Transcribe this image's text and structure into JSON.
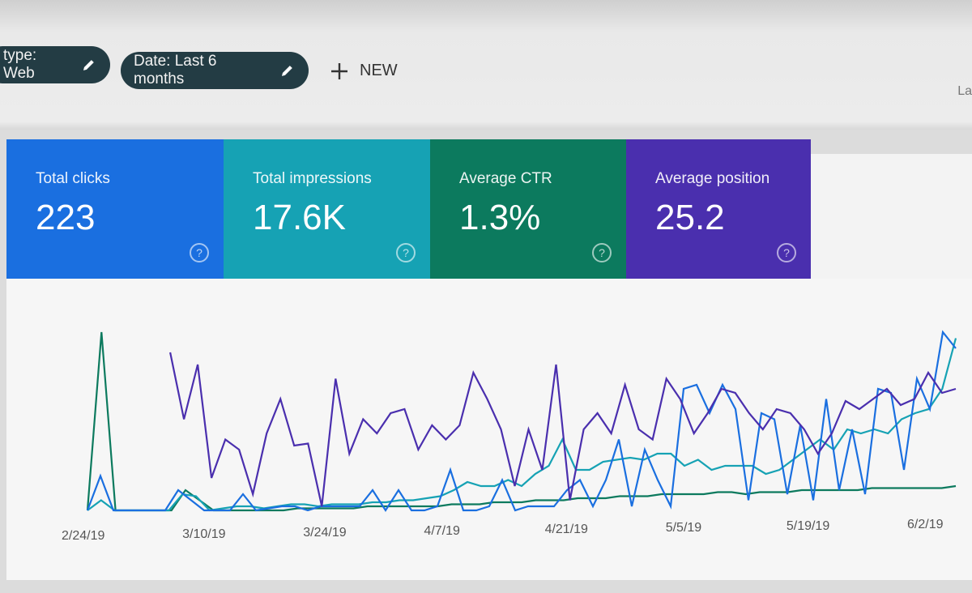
{
  "filters": [
    {
      "label": "type: Web",
      "icon": "pencil-icon"
    },
    {
      "label": "Date: Last 6 months",
      "icon": "pencil-icon"
    }
  ],
  "new_button": {
    "label": "NEW",
    "icon": "plus-icon"
  },
  "corner_text": "La",
  "metrics": [
    {
      "label": "Total clicks",
      "value": "223",
      "color": "#1a6fe0"
    },
    {
      "label": "Total impressions",
      "value": "17.6K",
      "color": "#16a2b4"
    },
    {
      "label": "Average CTR",
      "value": "1.3%",
      "color": "#0c7a5e"
    },
    {
      "label": "Average position",
      "value": "25.2",
      "color": "#4a2fae"
    }
  ],
  "help_glyph": "?",
  "chart_data": {
    "type": "line",
    "x_ticks": [
      "2/24/19",
      "3/10/19",
      "3/24/19",
      "4/7/19",
      "4/21/19",
      "5/5/19",
      "5/19/19",
      "6/2/19"
    ],
    "grid": false,
    "series": [
      {
        "color": "#4a2fae",
        "values": [
          null,
          null,
          null,
          null,
          null,
          null,
          78,
          45,
          72,
          16,
          35,
          30,
          8,
          38,
          55,
          32,
          33,
          2,
          65,
          28,
          45,
          38,
          48,
          50,
          30,
          42,
          35,
          42,
          68,
          55,
          40,
          12,
          40,
          20,
          72,
          5,
          40,
          48,
          38,
          62,
          40,
          35,
          65,
          55,
          38,
          48,
          60,
          58,
          48,
          40,
          50,
          48,
          40,
          28,
          38,
          54,
          50,
          55,
          60,
          52,
          55,
          68,
          58,
          60
        ]
      },
      {
        "color": "#1a6fe0",
        "values": [
          0,
          17,
          0,
          0,
          0,
          0,
          0,
          10,
          5,
          0,
          0,
          0,
          8,
          0,
          1,
          2,
          2,
          0,
          2,
          2,
          2,
          2,
          10,
          0,
          10,
          0,
          0,
          2,
          20,
          0,
          0,
          2,
          15,
          0,
          2,
          2,
          2,
          10,
          15,
          2,
          15,
          35,
          2,
          30,
          15,
          2,
          60,
          62,
          48,
          62,
          50,
          5,
          48,
          45,
          8,
          42,
          5,
          55,
          10,
          40,
          8,
          60,
          58,
          20,
          65,
          50,
          88,
          80
        ]
      },
      {
        "color": "#16a2b4",
        "values": [
          0,
          5,
          0,
          0,
          0,
          0,
          0,
          8,
          7,
          0,
          1,
          2,
          2,
          1,
          2,
          3,
          3,
          2,
          3,
          3,
          3,
          4,
          4,
          5,
          5,
          6,
          7,
          10,
          14,
          12,
          12,
          15,
          12,
          18,
          22,
          35,
          20,
          20,
          24,
          25,
          26,
          25,
          28,
          28,
          22,
          25,
          20,
          22,
          22,
          22,
          18,
          20,
          25,
          30,
          35,
          30,
          40,
          38,
          40,
          38,
          45,
          48,
          50,
          60,
          85
        ]
      },
      {
        "color": "#0c7a5e",
        "values": [
          0,
          88,
          0,
          0,
          0,
          0,
          0,
          10,
          5,
          0,
          0,
          0,
          0,
          0,
          0,
          1,
          1,
          1,
          1,
          1,
          2,
          2,
          2,
          2,
          2,
          2,
          3,
          3,
          3,
          4,
          4,
          4,
          5,
          5,
          5,
          6,
          6,
          6,
          7,
          7,
          7,
          8,
          8,
          8,
          8,
          9,
          9,
          8,
          9,
          9,
          9,
          10,
          10,
          10,
          10,
          10,
          11,
          11,
          11,
          11,
          11,
          11,
          12
        ]
      }
    ]
  }
}
